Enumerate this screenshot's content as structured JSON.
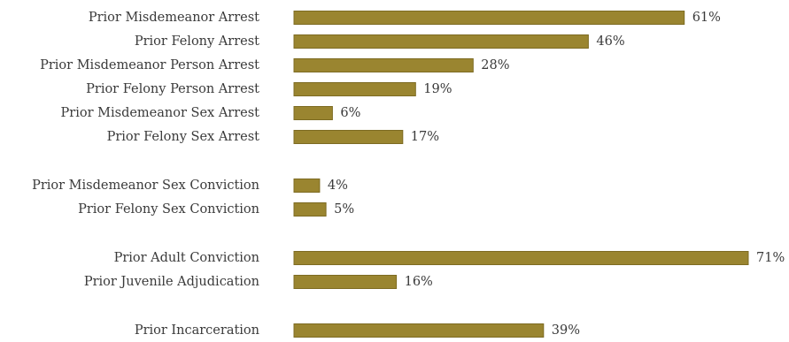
{
  "chart_data": {
    "type": "bar",
    "orientation": "horizontal",
    "title": "",
    "xlabel": "",
    "ylabel": "",
    "grid": false,
    "legend": "none",
    "xlim": [
      0,
      71
    ],
    "bar_color": "#9a8530",
    "bar_edge_color": "#7d6b22",
    "value_format": "percent",
    "groups": [
      {
        "categories": [
          "Prior Misdemeanor Arrest",
          "Prior Felony Arrest",
          "Prior Misdemeanor Person Arrest",
          "Prior Felony Person Arrest",
          "Prior Misdemeanor Sex Arrest",
          "Prior Felony Sex Arrest"
        ],
        "values": [
          61,
          46,
          28,
          19,
          6,
          17
        ],
        "labels": [
          "61%",
          "46%",
          "28%",
          "19%",
          "6%",
          "17%"
        ]
      },
      {
        "categories": [
          "Prior Misdemeanor Sex Conviction",
          "Prior Felony Sex Conviction"
        ],
        "values": [
          4,
          5
        ],
        "labels": [
          "4%",
          "5%"
        ]
      },
      {
        "categories": [
          "Prior Adult Conviction",
          "Prior Juvenile Adjudication"
        ],
        "values": [
          71,
          16
        ],
        "labels": [
          "71%",
          "16%"
        ]
      },
      {
        "categories": [
          "Prior Incarceration"
        ],
        "values": [
          39
        ],
        "labels": [
          "39%"
        ]
      }
    ]
  }
}
